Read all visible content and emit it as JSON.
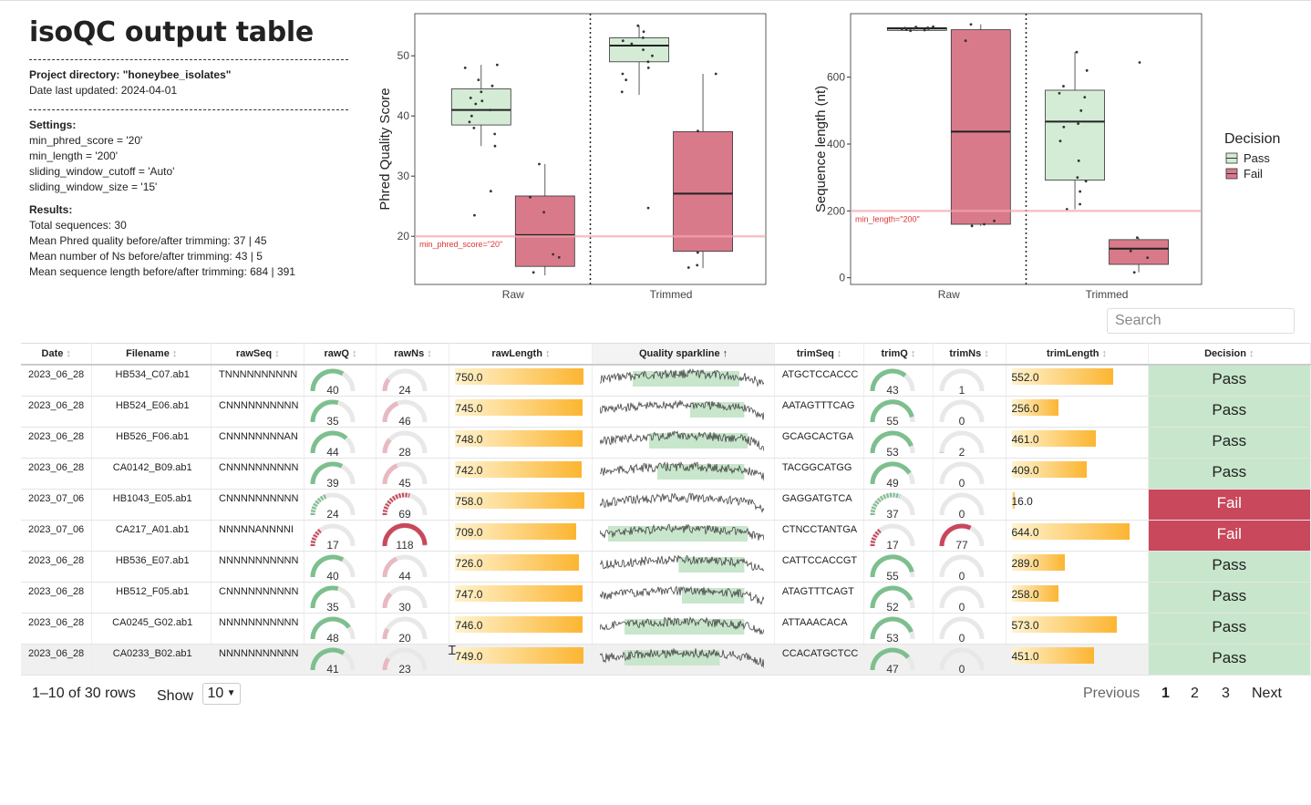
{
  "summary": {
    "title": "isoQC output table",
    "project": "Project directory: \"honeybee_isolates\"",
    "updated": "Date last updated: 2024-04-01",
    "settings_header": "Settings:",
    "settings": [
      "min_phred_score = '20'",
      "min_length = '200'",
      "sliding_window_cutoff = 'Auto'",
      "sliding_window_size = '15'"
    ],
    "results_header": "Results:",
    "results": [
      "Total sequences: 30",
      "Mean Phred quality before/after trimming: 37 | 45",
      "Mean number of Ns before/after trimming: 43 | 5",
      "Mean sequence length before/after trimming: 684 | 391"
    ]
  },
  "colors": {
    "pass": "#c8e6cc",
    "fail": "#c9485b",
    "pass_box": "#d4ecd6",
    "fail_box": "#d97a8b",
    "gauge_pass": "#7dbf8e",
    "gauge_fail": "#c9485b",
    "threshold": "#f4a6b0"
  },
  "legend": {
    "title": "Decision",
    "items": [
      "Pass",
      "Fail"
    ]
  },
  "chart_data": [
    {
      "type": "box",
      "ylabel": "Phred Quality Score",
      "categories": [
        "Raw",
        "Trimmed"
      ],
      "ylim": [
        12,
        57
      ],
      "yticks": [
        20,
        30,
        40,
        50
      ],
      "threshold": {
        "value": 20,
        "label": "min_phred_score=\"20\""
      },
      "boxes": [
        {
          "category": "Raw",
          "decision": "Pass",
          "q1": 38.5,
          "median": 41,
          "q3": 44.5,
          "lower": 35,
          "upper": 48.5
        },
        {
          "category": "Raw",
          "decision": "Fail",
          "q1": 15,
          "median": 20.2,
          "q3": 26.7,
          "lower": 13.5,
          "upper": 32
        },
        {
          "category": "Trimmed",
          "decision": "Pass",
          "q1": 49,
          "median": 51.7,
          "q3": 53,
          "lower": 43.5,
          "upper": 55
        },
        {
          "category": "Trimmed",
          "decision": "Fail",
          "q1": 17.5,
          "median": 27.1,
          "q3": 37.4,
          "lower": 14.7,
          "upper": 47
        }
      ],
      "points": [
        {
          "category": "Raw",
          "decision": "Pass",
          "values": [
            40,
            41,
            42,
            39,
            43,
            44,
            48,
            46,
            37,
            38,
            45,
            35,
            23.5,
            27.5,
            48.5,
            42.5
          ]
        },
        {
          "category": "Raw",
          "decision": "Fail",
          "values": [
            17,
            24,
            32,
            26.5,
            16.5,
            14
          ]
        },
        {
          "category": "Trimmed",
          "decision": "Pass",
          "values": [
            52,
            53,
            55,
            49,
            47,
            51,
            50,
            54,
            44,
            52.5,
            48,
            46,
            24.7
          ]
        },
        {
          "category": "Trimmed",
          "decision": "Fail",
          "values": [
            47,
            37.5,
            17.3,
            15.2,
            14.8
          ]
        }
      ]
    },
    {
      "type": "box",
      "ylabel": "Sequence length (nt)",
      "categories": [
        "Raw",
        "Trimmed"
      ],
      "ylim": [
        -20,
        790
      ],
      "yticks": [
        0,
        200,
        400,
        600
      ],
      "threshold": {
        "value": 200,
        "label": "min_length=\"200\""
      },
      "boxes": [
        {
          "category": "Raw",
          "decision": "Pass",
          "q1": 740,
          "median": 746,
          "q3": 748,
          "lower": 738,
          "upper": 752
        },
        {
          "category": "Raw",
          "decision": "Fail",
          "q1": 160,
          "median": 437,
          "q3": 742,
          "lower": 155,
          "upper": 758
        },
        {
          "category": "Trimmed",
          "decision": "Pass",
          "q1": 292,
          "median": 467,
          "q3": 561,
          "lower": 205,
          "upper": 675
        },
        {
          "category": "Trimmed",
          "decision": "Fail",
          "q1": 40,
          "median": 87,
          "q3": 114,
          "lower": 16,
          "upper": 120
        }
      ],
      "points": [
        {
          "category": "Raw",
          "decision": "Pass",
          "values": [
            745,
            748,
            742,
            750,
            746,
            747,
            741,
            744,
            739,
            751
          ]
        },
        {
          "category": "Raw",
          "decision": "Fail",
          "values": [
            758,
            709,
            160,
            155,
            170
          ]
        },
        {
          "category": "Trimmed",
          "decision": "Pass",
          "values": [
            552,
            461,
            409,
            289,
            258,
            573,
            451,
            620,
            675,
            500,
            300,
            350,
            220,
            205,
            540
          ]
        },
        {
          "category": "Trimmed",
          "decision": "Fail",
          "values": [
            644,
            16,
            120,
            60,
            80
          ]
        }
      ]
    }
  ],
  "search": {
    "placeholder": "Search"
  },
  "table": {
    "columns": [
      "Date",
      "Filename",
      "rawSeq",
      "rawQ",
      "rawNs",
      "rawLength",
      "Quality sparkline",
      "trimSeq",
      "trimQ",
      "trimNs",
      "trimLength",
      "Decision"
    ],
    "sorted_column": "Quality sparkline",
    "rows": [
      {
        "date": "2023_06_28",
        "file": "HB534_C07.ab1",
        "rawSeq": "TNNNNNNNNNN",
        "rawQ": 40,
        "rawNs": 24,
        "rawLen": "750.0",
        "trimSeq": "ATGCTCCACCC",
        "trimQ": 43,
        "trimNs": 1,
        "trimLen": "552.0",
        "decision": "Pass",
        "trimStart": 0.2,
        "trimEnd": 0.85
      },
      {
        "date": "2023_06_28",
        "file": "HB524_E06.ab1",
        "rawSeq": "CNNNNNNNNNN",
        "rawQ": 35,
        "rawNs": 46,
        "rawLen": "745.0",
        "trimSeq": "AATAGTTTCAG",
        "trimQ": 55,
        "trimNs": 0,
        "trimLen": "256.0",
        "decision": "Pass",
        "trimStart": 0.55,
        "trimEnd": 0.88
      },
      {
        "date": "2023_06_28",
        "file": "HB526_F06.ab1",
        "rawSeq": "CNNNNNNNNAN",
        "rawQ": 44,
        "rawNs": 28,
        "rawLen": "748.0",
        "trimSeq": "GCAGCACTGA",
        "trimQ": 53,
        "trimNs": 2,
        "trimLen": "461.0",
        "decision": "Pass",
        "trimStart": 0.3,
        "trimEnd": 0.9
      },
      {
        "date": "2023_06_28",
        "file": "CA0142_B09.ab1",
        "rawSeq": "CNNNNNNNNNN",
        "rawQ": 39,
        "rawNs": 45,
        "rawLen": "742.0",
        "trimSeq": "TACGGCATGG",
        "trimQ": 49,
        "trimNs": 0,
        "trimLen": "409.0",
        "decision": "Pass",
        "trimStart": 0.35,
        "trimEnd": 0.88
      },
      {
        "date": "2023_07_06",
        "file": "HB1043_E05.ab1",
        "rawSeq": "CNNNNNNNNNN",
        "rawQ": 24,
        "rawNs": 69,
        "rawLen": "758.0",
        "trimSeq": "GAGGATGTCA",
        "trimQ": 37,
        "trimNs": 0,
        "trimLen": "16.0",
        "decision": "Fail",
        "trimStart": 0,
        "trimEnd": 0
      },
      {
        "date": "2023_07_06",
        "file": "CA217_A01.ab1",
        "rawSeq": "NNNNNANNNNI",
        "rawQ": 17,
        "rawNs": 118,
        "rawLen": "709.0",
        "trimSeq": "CTNCCTANTGA",
        "trimQ": 17,
        "trimNs": 77,
        "trimLen": "644.0",
        "decision": "Fail",
        "trimStart": 0.05,
        "trimEnd": 0.9
      },
      {
        "date": "2023_06_28",
        "file": "HB536_E07.ab1",
        "rawSeq": "NNNNNNNNNNN",
        "rawQ": 40,
        "rawNs": 44,
        "rawLen": "726.0",
        "trimSeq": "CATTCCACCGT",
        "trimQ": 55,
        "trimNs": 0,
        "trimLen": "289.0",
        "decision": "Pass",
        "trimStart": 0.48,
        "trimEnd": 0.88
      },
      {
        "date": "2023_06_28",
        "file": "HB512_F05.ab1",
        "rawSeq": "CNNNNNNNNNN",
        "rawQ": 35,
        "rawNs": 30,
        "rawLen": "747.0",
        "trimSeq": "ATAGTTTCAGT",
        "trimQ": 52,
        "trimNs": 0,
        "trimLen": "258.0",
        "decision": "Pass",
        "trimStart": 0.5,
        "trimEnd": 0.88
      },
      {
        "date": "2023_06_28",
        "file": "CA0245_G02.ab1",
        "rawSeq": "NNNNNNNNNNN",
        "rawQ": 48,
        "rawNs": 20,
        "rawLen": "746.0",
        "trimSeq": "ATTAAACACA",
        "trimQ": 53,
        "trimNs": 0,
        "trimLen": "573.0",
        "decision": "Pass",
        "trimStart": 0.15,
        "trimEnd": 0.88
      },
      {
        "date": "2023_06_28",
        "file": "CA0233_B02.ab1",
        "rawSeq": "NNNNNNNNNNN",
        "rawQ": 41,
        "rawNs": 23,
        "rawLen": "749.0",
        "trimSeq": "CCACATGCTCC",
        "trimQ": 47,
        "trimNs": 0,
        "trimLen": "451.0",
        "decision": "Pass",
        "trimStart": 0.15,
        "trimEnd": 0.73
      }
    ]
  },
  "pagination": {
    "rows_info": "1–10 of 30 rows",
    "show_label": "Show",
    "page_size": "10",
    "previous": "Previous",
    "pages": [
      "1",
      "2",
      "3"
    ],
    "next": "Next"
  }
}
